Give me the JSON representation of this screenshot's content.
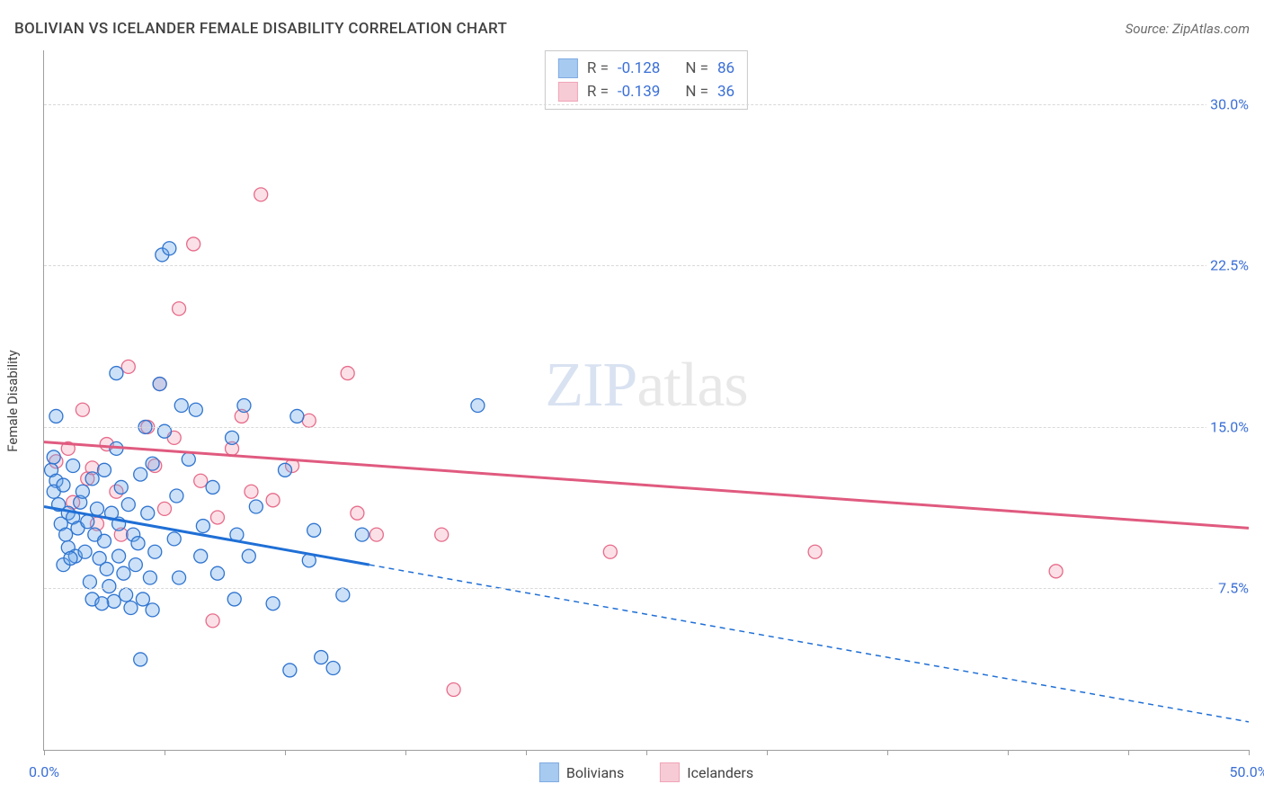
{
  "title": "BOLIVIAN VS ICELANDER FEMALE DISABILITY CORRELATION CHART",
  "source_label": "Source: ZipAtlas.com",
  "ylabel": "Female Disability",
  "watermark": {
    "zip": "ZIP",
    "atlas": "atlas"
  },
  "colors": {
    "series_a_fill": "#6ea8e8",
    "series_a_stroke": "#2f74d0",
    "series_b_fill": "#f3a9ba",
    "series_b_stroke": "#e76b8a",
    "trend_a": "#1f6fd6",
    "trend_b": "#e05a7f",
    "grid": "#d9d9d9",
    "axis": "#9e9e9e",
    "tick_text": "#3b6fd6",
    "title_text": "#424242",
    "source_text": "#6b6b6b",
    "bg": "#ffffff"
  },
  "chart": {
    "type": "scatter",
    "xlim": [
      0,
      50
    ],
    "ylim": [
      0,
      32.5
    ],
    "xtick_positions": [
      0,
      5,
      10,
      15,
      20,
      25,
      30,
      35,
      40,
      45,
      50
    ],
    "xtick_labels": {
      "0": "0.0%",
      "50": "50.0%"
    },
    "ytick_positions": [
      7.5,
      15.0,
      22.5,
      30.0
    ],
    "ytick_labels": [
      "7.5%",
      "15.0%",
      "22.5%",
      "30.0%"
    ],
    "marker_radius": 7.5,
    "trend_width": 3
  },
  "stats": {
    "a": {
      "R": "-0.128",
      "N": "86"
    },
    "b": {
      "R": "-0.139",
      "N": "36"
    }
  },
  "legend": {
    "a": "Bolivians",
    "b": "Icelanders"
  },
  "trend_lines": {
    "a_solid": {
      "x1": 0,
      "y1": 11.3,
      "x2": 13.5,
      "y2": 8.6
    },
    "a_dash": {
      "x1": 13.5,
      "y1": 8.6,
      "x2": 50,
      "y2": 1.3
    },
    "b": {
      "x1": 0,
      "y1": 14.3,
      "x2": 50,
      "y2": 10.3
    }
  },
  "series_a": [
    [
      0.3,
      13.0
    ],
    [
      0.5,
      12.5
    ],
    [
      0.4,
      12.0
    ],
    [
      0.6,
      11.4
    ],
    [
      0.8,
      12.3
    ],
    [
      0.4,
      13.6
    ],
    [
      1.0,
      11.0
    ],
    [
      0.7,
      10.5
    ],
    [
      0.9,
      10.0
    ],
    [
      1.2,
      10.8
    ],
    [
      1.0,
      9.4
    ],
    [
      1.3,
      9.0
    ],
    [
      0.8,
      8.6
    ],
    [
      1.5,
      11.5
    ],
    [
      1.1,
      8.9
    ],
    [
      1.4,
      10.3
    ],
    [
      1.2,
      13.2
    ],
    [
      1.6,
      12.0
    ],
    [
      1.8,
      10.6
    ],
    [
      1.7,
      9.2
    ],
    [
      2.0,
      12.6
    ],
    [
      2.1,
      10.0
    ],
    [
      2.3,
      8.9
    ],
    [
      1.9,
      7.8
    ],
    [
      2.2,
      11.2
    ],
    [
      2.5,
      13.0
    ],
    [
      2.5,
      9.7
    ],
    [
      2.6,
      8.4
    ],
    [
      2.8,
      11.0
    ],
    [
      2.7,
      7.6
    ],
    [
      3.0,
      14.0
    ],
    [
      2.9,
      6.9
    ],
    [
      3.1,
      10.5
    ],
    [
      3.1,
      9.0
    ],
    [
      3.2,
      12.2
    ],
    [
      3.4,
      7.2
    ],
    [
      3.3,
      8.2
    ],
    [
      3.5,
      11.4
    ],
    [
      3.7,
      10.0
    ],
    [
      2.0,
      7.0
    ],
    [
      2.4,
      6.8
    ],
    [
      3.6,
      6.6
    ],
    [
      3.8,
      8.6
    ],
    [
      3.9,
      9.6
    ],
    [
      4.0,
      12.8
    ],
    [
      4.1,
      7.0
    ],
    [
      4.2,
      15.0
    ],
    [
      4.3,
      11.0
    ],
    [
      4.4,
      8.0
    ],
    [
      4.5,
      13.3
    ],
    [
      4.5,
      6.5
    ],
    [
      4.6,
      9.2
    ],
    [
      4.8,
      17.0
    ],
    [
      4.9,
      23.0
    ],
    [
      5.2,
      23.3
    ],
    [
      5.0,
      14.8
    ],
    [
      5.5,
      11.8
    ],
    [
      5.4,
      9.8
    ],
    [
      5.6,
      8.0
    ],
    [
      5.7,
      16.0
    ],
    [
      6.0,
      13.5
    ],
    [
      6.3,
      15.8
    ],
    [
      6.5,
      9.0
    ],
    [
      6.6,
      10.4
    ],
    [
      7.0,
      12.2
    ],
    [
      7.2,
      8.2
    ],
    [
      7.8,
      14.5
    ],
    [
      7.9,
      7.0
    ],
    [
      8.0,
      10.0
    ],
    [
      8.3,
      16.0
    ],
    [
      8.5,
      9.0
    ],
    [
      8.8,
      11.3
    ],
    [
      9.5,
      6.8
    ],
    [
      10.0,
      13.0
    ],
    [
      10.2,
      3.7
    ],
    [
      10.5,
      15.5
    ],
    [
      11.0,
      8.8
    ],
    [
      11.2,
      10.2
    ],
    [
      11.5,
      4.3
    ],
    [
      12.0,
      3.8
    ],
    [
      12.4,
      7.2
    ],
    [
      13.2,
      10.0
    ],
    [
      4.0,
      4.2
    ],
    [
      3.0,
      17.5
    ],
    [
      18.0,
      16.0
    ],
    [
      0.5,
      15.5
    ]
  ],
  "series_b": [
    [
      0.5,
      13.4
    ],
    [
      1.0,
      14.0
    ],
    [
      1.2,
      11.5
    ],
    [
      1.6,
      15.8
    ],
    [
      1.8,
      12.6
    ],
    [
      2.0,
      13.1
    ],
    [
      2.2,
      10.5
    ],
    [
      2.6,
      14.2
    ],
    [
      3.0,
      12.0
    ],
    [
      3.2,
      10.0
    ],
    [
      3.5,
      17.8
    ],
    [
      4.3,
      15.0
    ],
    [
      4.6,
      13.2
    ],
    [
      4.8,
      17.0
    ],
    [
      5.0,
      11.2
    ],
    [
      5.4,
      14.5
    ],
    [
      5.6,
      20.5
    ],
    [
      6.2,
      23.5
    ],
    [
      6.5,
      12.5
    ],
    [
      7.0,
      6.0
    ],
    [
      7.2,
      10.8
    ],
    [
      7.8,
      14.0
    ],
    [
      8.2,
      15.5
    ],
    [
      8.6,
      12.0
    ],
    [
      9.0,
      25.8
    ],
    [
      9.5,
      11.6
    ],
    [
      10.3,
      13.2
    ],
    [
      11.0,
      15.3
    ],
    [
      12.6,
      17.5
    ],
    [
      13.0,
      11.0
    ],
    [
      13.8,
      10.0
    ],
    [
      16.5,
      10.0
    ],
    [
      17.0,
      2.8
    ],
    [
      23.5,
      9.2
    ],
    [
      32.0,
      9.2
    ],
    [
      42.0,
      8.3
    ]
  ]
}
